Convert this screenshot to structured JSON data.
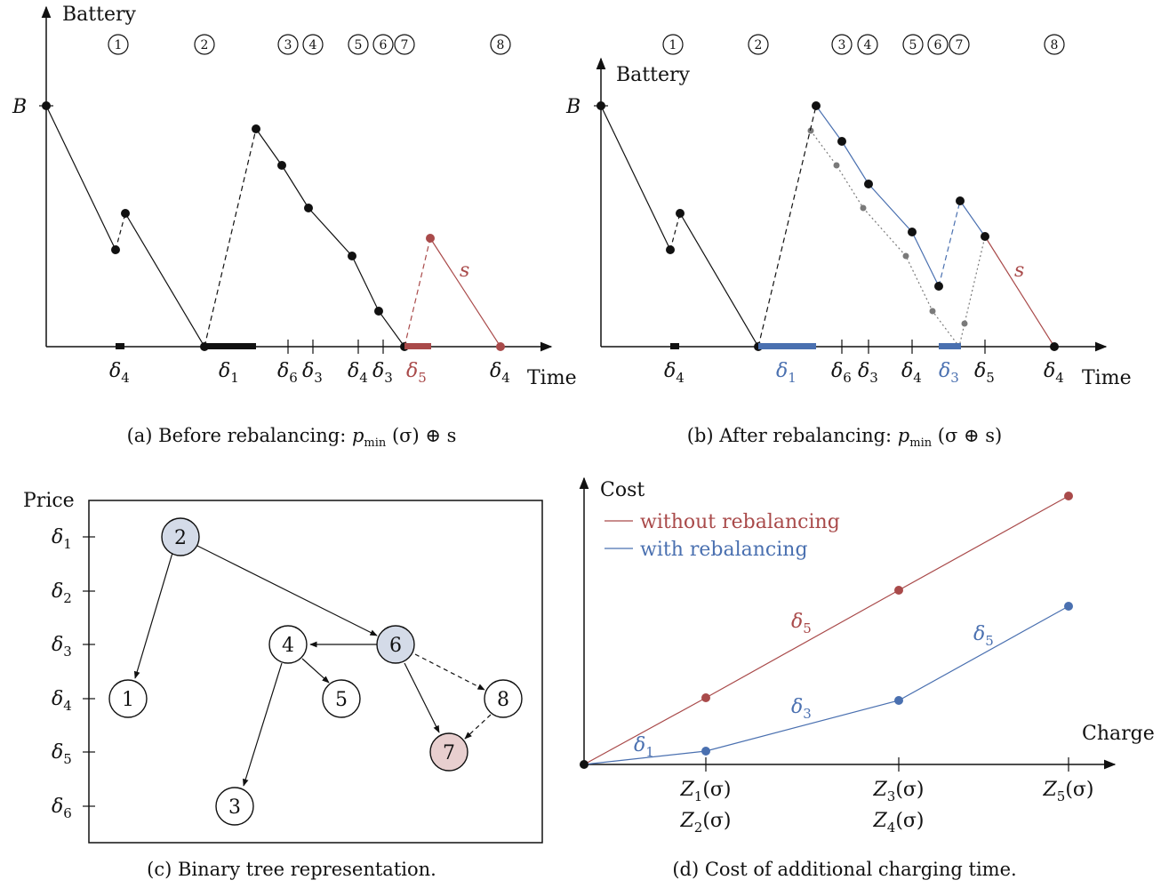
{
  "colors": {
    "red": "#a94a4a",
    "blue": "#4a70b0",
    "black": "#111111",
    "gray": "#7a7a7a",
    "node_blue": "#d4dbe8",
    "node_red": "#e8cfcf"
  },
  "panel_a": {
    "ylabel": "Battery",
    "xlabel": "Time",
    "B_label": "B",
    "s_label": "s",
    "markers": [
      "1",
      "2",
      "3",
      "4",
      "5",
      "6",
      "7",
      "8"
    ],
    "ticks": [
      {
        "sym": "δ",
        "sub": "4"
      },
      {
        "sym": "δ",
        "sub": "1"
      },
      {
        "sym": "δ",
        "sub": "6"
      },
      {
        "sym": "δ",
        "sub": "3"
      },
      {
        "sym": "δ",
        "sub": "4"
      },
      {
        "sym": "δ",
        "sub": "3"
      },
      {
        "sym": "δ",
        "sub": "5"
      },
      {
        "sym": "δ",
        "sub": "4"
      }
    ],
    "caption": {
      "pre": "(a) Before rebalancing: ",
      "p": "p",
      "sub": "min",
      "post": " (σ) ⊕ s"
    }
  },
  "panel_b": {
    "ylabel": "Battery",
    "xlabel": "Time",
    "B_label": "B",
    "s_label": "s",
    "markers": [
      "1",
      "2",
      "3",
      "4",
      "5",
      "6",
      "7",
      "8"
    ],
    "ticks": [
      {
        "sym": "δ",
        "sub": "4"
      },
      {
        "sym": "δ",
        "sub": "1"
      },
      {
        "sym": "δ",
        "sub": "6"
      },
      {
        "sym": "δ",
        "sub": "3"
      },
      {
        "sym": "δ",
        "sub": "4"
      },
      {
        "sym": "δ",
        "sub": "3"
      },
      {
        "sym": "δ",
        "sub": "5"
      },
      {
        "sym": "δ",
        "sub": "4"
      }
    ],
    "caption": {
      "pre": "(b) After rebalancing: ",
      "p": "p",
      "sub": "min",
      "post": " (σ ⊕ s)"
    }
  },
  "panel_c": {
    "ylabel": "Price",
    "levels": [
      {
        "sym": "δ",
        "sub": "1"
      },
      {
        "sym": "δ",
        "sub": "2"
      },
      {
        "sym": "δ",
        "sub": "3"
      },
      {
        "sym": "δ",
        "sub": "4"
      },
      {
        "sym": "δ",
        "sub": "5"
      },
      {
        "sym": "δ",
        "sub": "6"
      }
    ],
    "nodes": [
      "2",
      "6",
      "4",
      "1",
      "5",
      "8",
      "7",
      "3"
    ],
    "caption": "(c) Binary tree representation."
  },
  "panel_d": {
    "ylabel": "Cost",
    "xlabel": "Charge",
    "legend": [
      "without rebalancing",
      "with rebalancing"
    ],
    "segment_labels": [
      {
        "sym": "δ",
        "sub": "5"
      },
      {
        "sym": "δ",
        "sub": "5"
      },
      {
        "sym": "δ",
        "sub": "3"
      },
      {
        "sym": "δ",
        "sub": "1"
      }
    ],
    "xticks": [
      [
        "Z",
        "1",
        "(σ)"
      ],
      [
        "Z",
        "2",
        "(σ)"
      ],
      [
        "Z",
        "3",
        "(σ)"
      ],
      [
        "Z",
        "4",
        "(σ)"
      ],
      [
        "Z",
        "5",
        "(σ)"
      ]
    ],
    "caption": "(d) Cost of additional charging time."
  }
}
